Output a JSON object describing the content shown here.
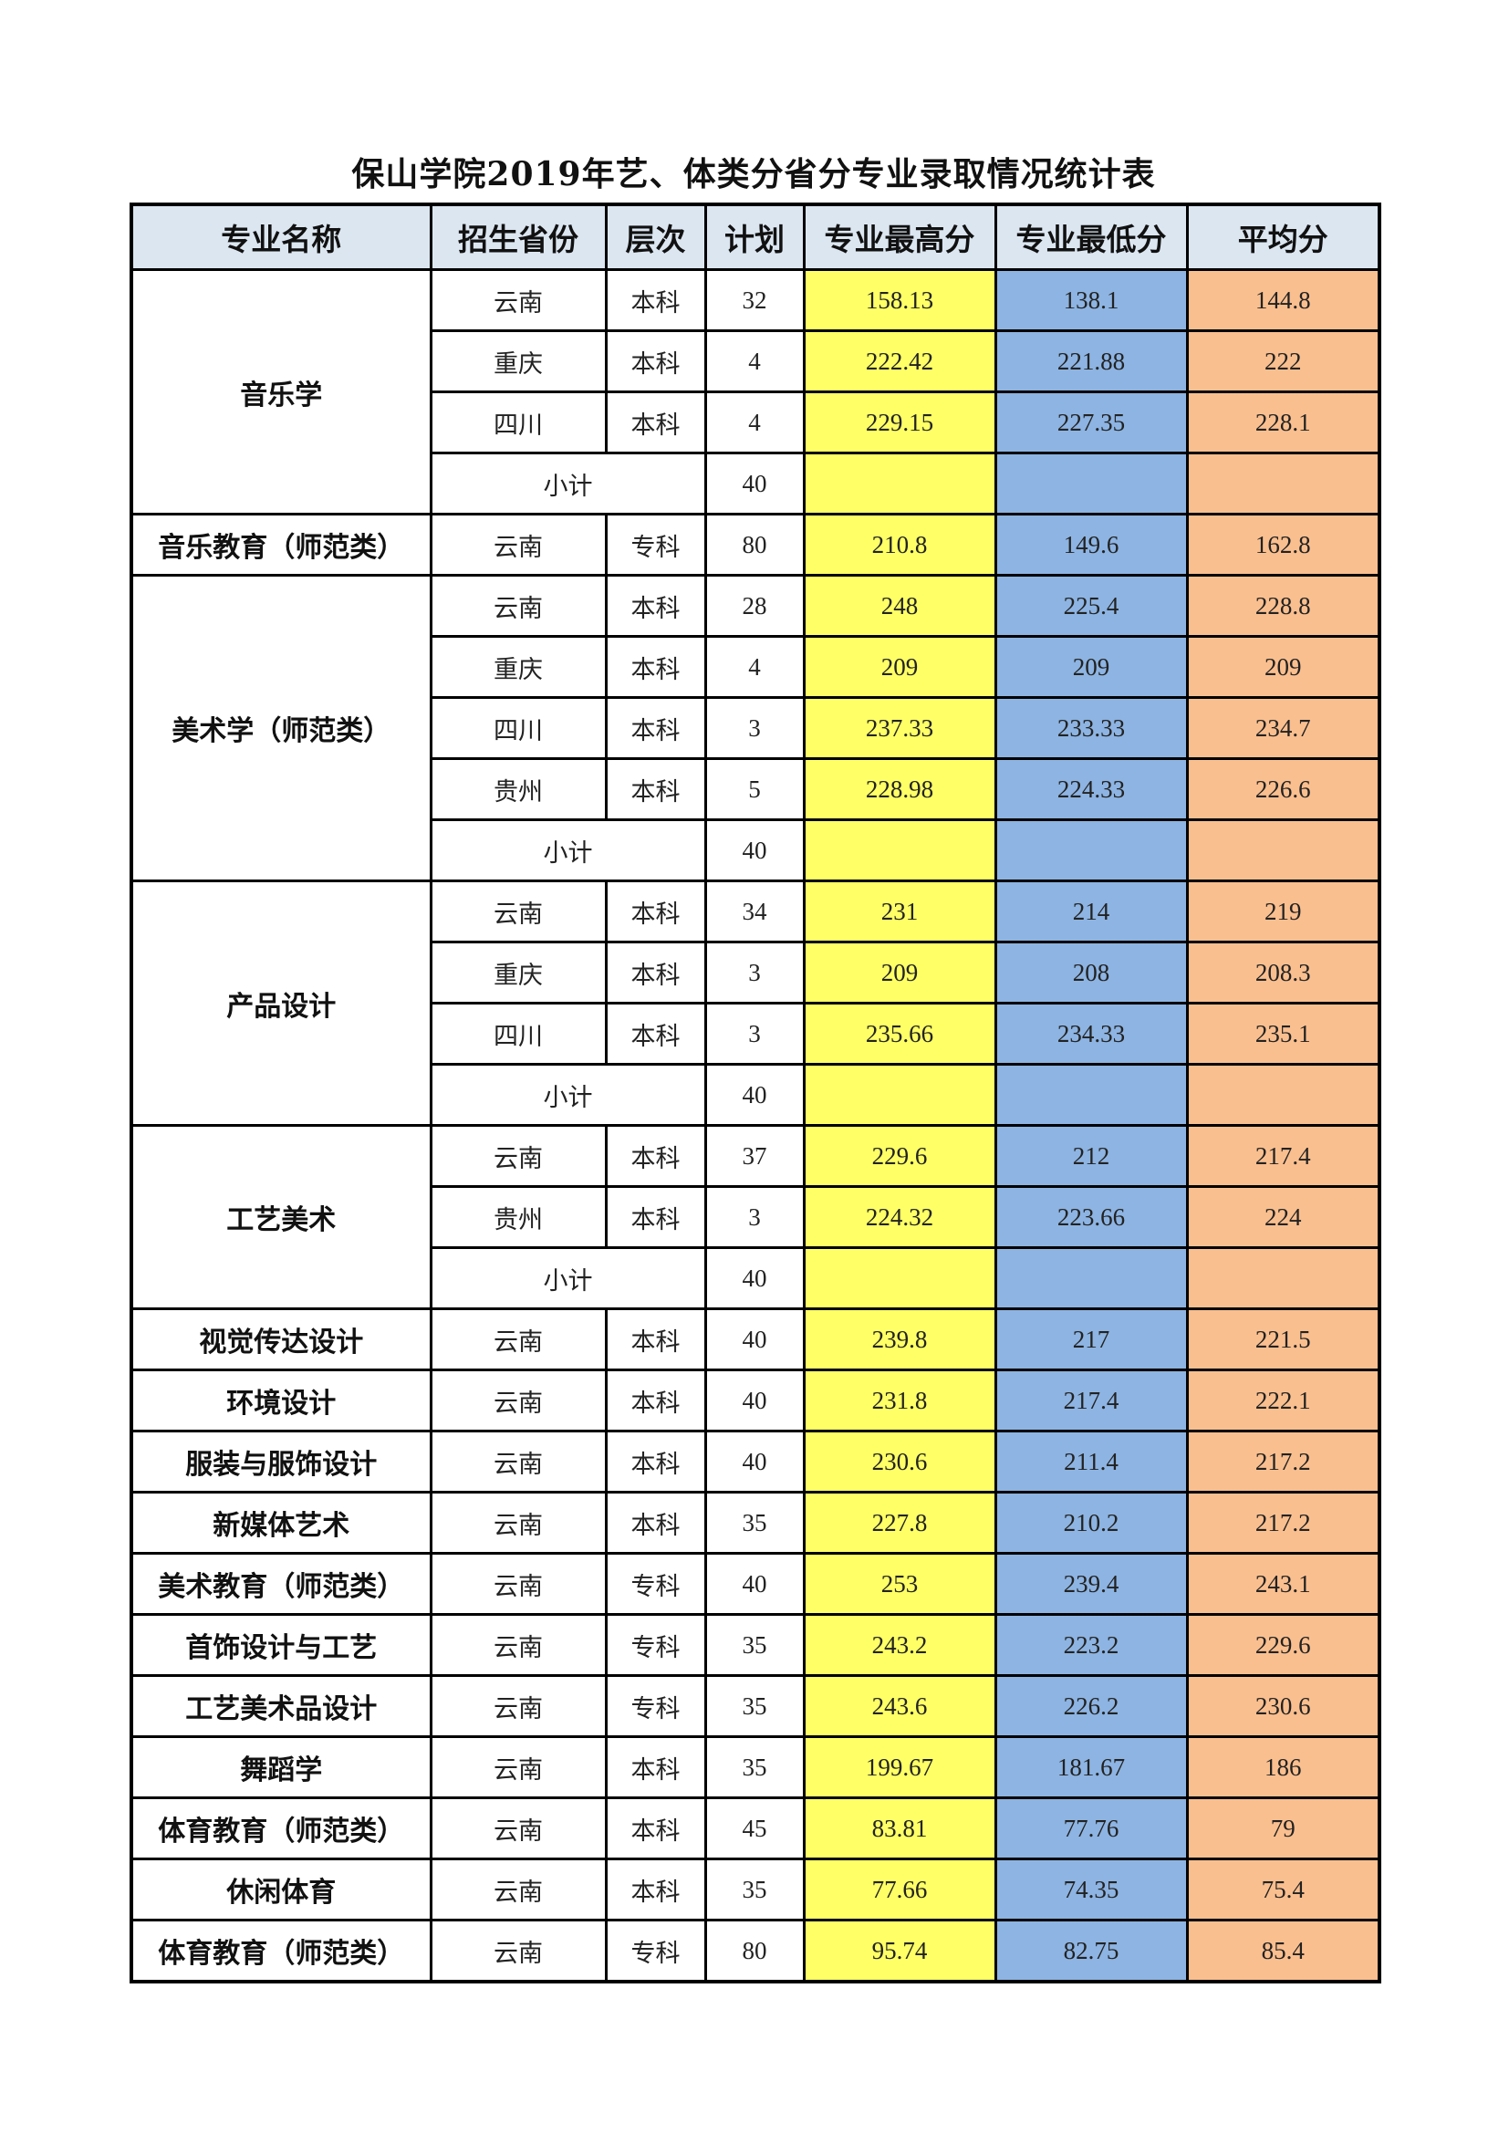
{
  "title": "保山学院2019年艺、体类分省分专业录取情况统计表",
  "colors": {
    "header": "#DCE6F1",
    "max": "#FFFF66",
    "min": "#8DB4E2",
    "avg": "#FABF8F"
  },
  "headers": [
    "专业名称",
    "招生省份",
    "层次",
    "计划",
    "专业最高分",
    "专业最低分",
    "平均分"
  ],
  "groups": [
    {
      "name": "音乐学",
      "rows": [
        {
          "province": "云南",
          "level": "本科",
          "plan": "32",
          "max": "158.13",
          "min": "138.1",
          "avg": "144.8"
        },
        {
          "province": "重庆",
          "level": "本科",
          "plan": "4",
          "max": "222.42",
          "min": "221.88",
          "avg": "222"
        },
        {
          "province": "四川",
          "level": "本科",
          "plan": "4",
          "max": "229.15",
          "min": "227.35",
          "avg": "228.1"
        }
      ],
      "subtotal": {
        "label": "小计",
        "plan": "40"
      }
    },
    {
      "name": "音乐教育（师范类）",
      "rows": [
        {
          "province": "云南",
          "level": "专科",
          "plan": "80",
          "max": "210.8",
          "min": "149.6",
          "avg": "162.8"
        }
      ]
    },
    {
      "name": "美术学（师范类）",
      "rows": [
        {
          "province": "云南",
          "level": "本科",
          "plan": "28",
          "max": "248",
          "min": "225.4",
          "avg": "228.8"
        },
        {
          "province": "重庆",
          "level": "本科",
          "plan": "4",
          "max": "209",
          "min": "209",
          "avg": "209"
        },
        {
          "province": "四川",
          "level": "本科",
          "plan": "3",
          "max": "237.33",
          "min": "233.33",
          "avg": "234.7"
        },
        {
          "province": "贵州",
          "level": "本科",
          "plan": "5",
          "max": "228.98",
          "min": "224.33",
          "avg": "226.6"
        }
      ],
      "subtotal": {
        "label": "小计",
        "plan": "40"
      }
    },
    {
      "name": "产品设计",
      "rows": [
        {
          "province": "云南",
          "level": "本科",
          "plan": "34",
          "max": "231",
          "min": "214",
          "avg": "219"
        },
        {
          "province": "重庆",
          "level": "本科",
          "plan": "3",
          "max": "209",
          "min": "208",
          "avg": "208.3"
        },
        {
          "province": "四川",
          "level": "本科",
          "plan": "3",
          "max": "235.66",
          "min": "234.33",
          "avg": "235.1"
        }
      ],
      "subtotal": {
        "label": "小计",
        "plan": "40"
      }
    },
    {
      "name": "工艺美术",
      "rows": [
        {
          "province": "云南",
          "level": "本科",
          "plan": "37",
          "max": "229.6",
          "min": "212",
          "avg": "217.4"
        },
        {
          "province": "贵州",
          "level": "本科",
          "plan": "3",
          "max": "224.32",
          "min": "223.66",
          "avg": "224"
        }
      ],
      "subtotal": {
        "label": "小计",
        "plan": "40"
      }
    },
    {
      "name": "视觉传达设计",
      "rows": [
        {
          "province": "云南",
          "level": "本科",
          "plan": "40",
          "max": "239.8",
          "min": "217",
          "avg": "221.5"
        }
      ]
    },
    {
      "name": "环境设计",
      "rows": [
        {
          "province": "云南",
          "level": "本科",
          "plan": "40",
          "max": "231.8",
          "min": "217.4",
          "avg": "222.1"
        }
      ]
    },
    {
      "name": "服装与服饰设计",
      "rows": [
        {
          "province": "云南",
          "level": "本科",
          "plan": "40",
          "max": "230.6",
          "min": "211.4",
          "avg": "217.2"
        }
      ]
    },
    {
      "name": "新媒体艺术",
      "rows": [
        {
          "province": "云南",
          "level": "本科",
          "plan": "35",
          "max": "227.8",
          "min": "210.2",
          "avg": "217.2"
        }
      ]
    },
    {
      "name": "美术教育（师范类）",
      "rows": [
        {
          "province": "云南",
          "level": "专科",
          "plan": "40",
          "max": "253",
          "min": "239.4",
          "avg": "243.1"
        }
      ]
    },
    {
      "name": "首饰设计与工艺",
      "rows": [
        {
          "province": "云南",
          "level": "专科",
          "plan": "35",
          "max": "243.2",
          "min": "223.2",
          "avg": "229.6"
        }
      ]
    },
    {
      "name": "工艺美术品设计",
      "rows": [
        {
          "province": "云南",
          "level": "专科",
          "plan": "35",
          "max": "243.6",
          "min": "226.2",
          "avg": "230.6"
        }
      ]
    },
    {
      "name": "舞蹈学",
      "rows": [
        {
          "province": "云南",
          "level": "本科",
          "plan": "35",
          "max": "199.67",
          "min": "181.67",
          "avg": "186"
        }
      ]
    },
    {
      "name": "体育教育（师范类）",
      "rows": [
        {
          "province": "云南",
          "level": "本科",
          "plan": "45",
          "max": "83.81",
          "min": "77.76",
          "avg": "79"
        }
      ]
    },
    {
      "name": "休闲体育",
      "rows": [
        {
          "province": "云南",
          "level": "本科",
          "plan": "35",
          "max": "77.66",
          "min": "74.35",
          "avg": "75.4"
        }
      ]
    },
    {
      "name": "体育教育（师范类）",
      "rows": [
        {
          "province": "云南",
          "level": "专科",
          "plan": "80",
          "max": "95.74",
          "min": "82.75",
          "avg": "85.4"
        }
      ]
    }
  ]
}
